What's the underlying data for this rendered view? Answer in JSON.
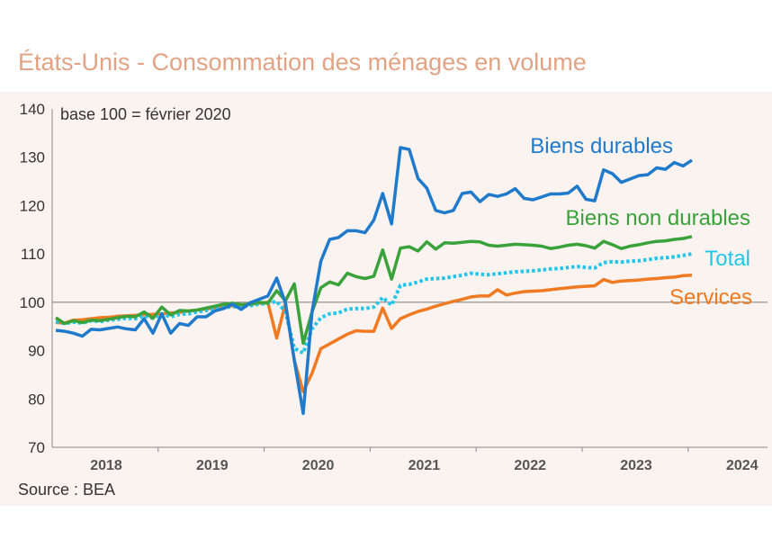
{
  "title": "États-Unis - Consommation des ménages en volume",
  "chart_data": {
    "type": "line",
    "title": "États-Unis - Consommation des ménages en volume",
    "subtitle": "base 100 = février 2020",
    "source": "Source : BEA",
    "xlabel": "",
    "ylabel": "",
    "ylim": [
      70,
      140
    ],
    "yticks": [
      70,
      80,
      90,
      100,
      110,
      120,
      130,
      140
    ],
    "year_labels": [
      "2018",
      "2019",
      "2020",
      "2021",
      "2022",
      "2023",
      "2024"
    ],
    "x_start": "2018-01",
    "x_end": "2024-06",
    "reference_line": 100,
    "grid": false,
    "series": [
      {
        "name": "Biens durables",
        "color": "#1f7acc",
        "style": "solid",
        "values": [
          94.2,
          94.0,
          93.6,
          93.0,
          94.4,
          94.3,
          94.6,
          94.9,
          94.5,
          94.3,
          96.6,
          93.6,
          97.6,
          93.6,
          95.6,
          95.2,
          97.0,
          97.0,
          98.2,
          98.7,
          99.6,
          98.5,
          99.9,
          100.6,
          101.3,
          105.0,
          99.8,
          88.0,
          77.0,
          98.0,
          108.5,
          113.0,
          113.4,
          114.8,
          114.8,
          114.4,
          117.0,
          122.5,
          116.2,
          132.0,
          131.6,
          125.6,
          123.6,
          119.0,
          118.5,
          119.0,
          122.5,
          122.8,
          120.8,
          122.3,
          121.9,
          122.4,
          123.5,
          121.5,
          121.2,
          121.8,
          122.4,
          122.4,
          122.6,
          124.0,
          121.3,
          121.0,
          127.4,
          126.6,
          124.8,
          125.5,
          126.2,
          126.4,
          127.8,
          127.5,
          128.9,
          128.2,
          129.4
        ]
      },
      {
        "name": "Biens non durables",
        "color": "#3aa23a",
        "style": "solid",
        "values": [
          96.8,
          95.6,
          96.2,
          95.8,
          96.3,
          96.2,
          96.5,
          96.8,
          97.1,
          97.0,
          98.0,
          96.7,
          99.0,
          97.4,
          98.3,
          98.2,
          98.4,
          98.8,
          99.2,
          99.6,
          99.8,
          99.5,
          99.6,
          100.0,
          99.8,
          102.4,
          100.3,
          103.8,
          91.5,
          98.0,
          103.0,
          104.2,
          103.6,
          106.0,
          105.3,
          104.9,
          105.4,
          110.8,
          104.8,
          111.2,
          111.5,
          110.6,
          112.5,
          111.0,
          112.3,
          112.2,
          112.4,
          112.6,
          112.5,
          111.8,
          111.6,
          111.8,
          112.0,
          111.9,
          111.8,
          111.6,
          111.1,
          111.4,
          111.8,
          112.0,
          111.7,
          111.2,
          112.6,
          111.9,
          111.1,
          111.6,
          111.9,
          112.3,
          112.6,
          112.7,
          113.0,
          113.2,
          113.6
        ]
      },
      {
        "name": "Total",
        "color": "#22c6ea",
        "style": "dotted",
        "values": [
          96.0,
          95.6,
          95.9,
          95.7,
          96.2,
          96.0,
          96.3,
          96.5,
          96.7,
          96.6,
          97.2,
          96.7,
          97.6,
          97.0,
          97.5,
          97.6,
          98.0,
          98.3,
          98.6,
          98.9,
          99.1,
          99.1,
          99.3,
          99.6,
          99.8,
          100.2,
          98.0,
          90.5,
          89.5,
          94.5,
          96.8,
          97.6,
          97.8,
          98.6,
          98.7,
          98.7,
          99.0,
          101.0,
          99.4,
          103.5,
          103.7,
          104.2,
          104.8,
          104.9,
          105.0,
          105.3,
          105.6,
          106.0,
          105.8,
          105.7,
          105.9,
          106.1,
          106.3,
          106.4,
          106.5,
          106.7,
          106.9,
          107.0,
          107.2,
          107.4,
          107.2,
          107.1,
          108.2,
          108.4,
          108.3,
          108.5,
          108.6,
          108.8,
          109.1,
          109.2,
          109.4,
          109.7,
          110.0
        ]
      },
      {
        "name": "Services",
        "color": "#f07a22",
        "style": "solid",
        "values": [
          95.8,
          95.7,
          96.3,
          96.4,
          96.6,
          96.8,
          96.9,
          97.1,
          97.2,
          97.3,
          97.4,
          97.5,
          97.6,
          97.8,
          97.9,
          98.2,
          98.4,
          98.6,
          98.9,
          99.1,
          99.3,
          99.4,
          99.6,
          99.8,
          100.0,
          92.6,
          99.8,
          88.0,
          81.5,
          85.3,
          90.4,
          91.4,
          92.4,
          93.4,
          94.1,
          94.0,
          94.0,
          98.8,
          94.6,
          96.6,
          97.4,
          98.1,
          98.6,
          99.2,
          99.7,
          100.2,
          100.6,
          101.1,
          101.3,
          101.3,
          102.6,
          101.5,
          101.9,
          102.2,
          102.3,
          102.4,
          102.6,
          102.8,
          103.0,
          103.2,
          103.3,
          103.4,
          104.7,
          104.1,
          104.4,
          104.5,
          104.6,
          104.8,
          104.9,
          105.1,
          105.2,
          105.5,
          105.6
        ]
      }
    ]
  }
}
